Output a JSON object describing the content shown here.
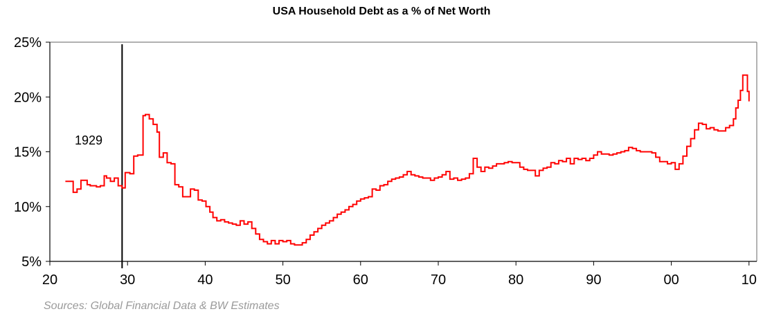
{
  "chart_data": {
    "type": "line",
    "title": "USA Household Debt as a % of Net Worth",
    "source": "Sources: Global Financial Data & BW Estimates",
    "xlabel": "",
    "ylabel": "",
    "xlim": [
      1920,
      2011
    ],
    "ylim": [
      5,
      25
    ],
    "x_ticks": [
      {
        "value": 1920,
        "label": "20"
      },
      {
        "value": 1930,
        "label": "30"
      },
      {
        "value": 1940,
        "label": "40"
      },
      {
        "value": 1950,
        "label": "50"
      },
      {
        "value": 1960,
        "label": "60"
      },
      {
        "value": 1970,
        "label": "70"
      },
      {
        "value": 1980,
        "label": "80"
      },
      {
        "value": 1990,
        "label": "90"
      },
      {
        "value": 2000,
        "label": "00"
      },
      {
        "value": 2010,
        "label": "10"
      }
    ],
    "y_ticks": [
      {
        "value": 5,
        "label": "5%"
      },
      {
        "value": 10,
        "label": "10%"
      },
      {
        "value": 15,
        "label": "15%"
      },
      {
        "value": 20,
        "label": "20%"
      },
      {
        "value": 25,
        "label": "25%"
      }
    ],
    "annotation": {
      "x": 1929.3,
      "label": "1929"
    },
    "grid": false,
    "legend": "none",
    "line_color": "#ff0000",
    "series": [
      {
        "x": [
          1922.0,
          1922.8,
          1923.0,
          1923.5,
          1924.0,
          1924.8,
          1925.2,
          1926.0,
          1926.5,
          1927.0,
          1927.3,
          1927.8,
          1928.3,
          1928.8,
          1929.3,
          1929.7,
          1930.3,
          1930.8,
          1931.3,
          1932.0,
          1932.3,
          1932.8,
          1933.3,
          1933.8,
          1934.1,
          1934.6,
          1935.1,
          1935.6,
          1936.1,
          1936.6,
          1937.1,
          1937.6,
          1938.1,
          1938.6,
          1939.1,
          1939.6,
          1940.1,
          1940.6,
          1941.0,
          1941.5,
          1942.0,
          1942.5,
          1943.0,
          1943.5,
          1944.0,
          1944.5,
          1945.0,
          1945.5,
          1946.0,
          1946.5,
          1947.0,
          1947.5,
          1948.0,
          1948.5,
          1949.0,
          1949.5,
          1950.0,
          1950.5,
          1951.0,
          1951.5,
          1952.0,
          1952.5,
          1953.0,
          1953.5,
          1954.0,
          1954.5,
          1955.0,
          1955.5,
          1956.0,
          1956.5,
          1957.0,
          1957.5,
          1958.0,
          1958.5,
          1959.0,
          1959.5,
          1960.0,
          1960.5,
          1961.0,
          1961.5,
          1962.0,
          1962.5,
          1963.0,
          1963.5,
          1964.0,
          1964.5,
          1965.0,
          1965.5,
          1966.0,
          1966.5,
          1967.0,
          1967.5,
          1968.0,
          1968.5,
          1969.0,
          1969.5,
          1970.0,
          1970.5,
          1971.0,
          1971.5,
          1972.0,
          1972.5,
          1973.0,
          1973.5,
          1974.0,
          1974.5,
          1975.0,
          1975.5,
          1976.0,
          1976.5,
          1977.0,
          1977.5,
          1978.0,
          1978.5,
          1979.0,
          1979.5,
          1980.0,
          1980.5,
          1981.0,
          1981.5,
          1982.0,
          1982.5,
          1983.0,
          1983.5,
          1984.0,
          1984.5,
          1985.0,
          1985.5,
          1986.0,
          1986.5,
          1987.0,
          1987.5,
          1988.0,
          1988.5,
          1989.0,
          1989.5,
          1990.0,
          1990.5,
          1991.0,
          1991.5,
          1992.0,
          1992.5,
          1993.0,
          1993.5,
          1994.0,
          1994.5,
          1995.0,
          1995.5,
          1996.0,
          1996.5,
          1997.0,
          1997.5,
          1998.0,
          1998.5,
          1999.0,
          1999.5,
          2000.0,
          2000.5,
          2001.0,
          2001.5,
          2002.0,
          2002.5,
          2003.0,
          2003.5,
          2004.0,
          2004.5,
          2005.0,
          2005.5,
          2006.0,
          2006.5,
          2007.0,
          2007.5,
          2008.0,
          2008.3,
          2008.6,
          2008.9,
          2009.2,
          2009.5,
          2009.8,
          2010.0
        ],
        "values": [
          12.3,
          12.3,
          11.3,
          11.6,
          12.4,
          12.0,
          11.9,
          11.8,
          11.9,
          12.8,
          12.6,
          12.3,
          12.6,
          11.9,
          11.7,
          13.1,
          13.0,
          14.6,
          14.7,
          18.3,
          18.4,
          18.0,
          17.5,
          16.8,
          14.5,
          14.9,
          14.0,
          13.9,
          12.0,
          11.8,
          10.9,
          10.9,
          11.6,
          11.5,
          10.6,
          10.5,
          10.0,
          9.5,
          9.0,
          8.7,
          8.8,
          8.6,
          8.5,
          8.4,
          8.3,
          8.7,
          8.4,
          8.6,
          8.0,
          7.5,
          7.0,
          6.8,
          6.6,
          6.9,
          6.6,
          6.9,
          6.8,
          6.9,
          6.6,
          6.5,
          6.5,
          6.7,
          7.0,
          7.4,
          7.7,
          8.0,
          8.3,
          8.5,
          8.7,
          9.0,
          9.3,
          9.5,
          9.7,
          10.0,
          10.2,
          10.5,
          10.7,
          10.8,
          10.9,
          11.6,
          11.5,
          11.9,
          12.0,
          12.3,
          12.5,
          12.6,
          12.7,
          12.9,
          13.2,
          12.9,
          12.8,
          12.7,
          12.6,
          12.6,
          12.4,
          12.6,
          12.7,
          12.9,
          13.2,
          12.5,
          12.6,
          12.4,
          12.5,
          12.6,
          13.0,
          14.4,
          13.6,
          13.2,
          13.6,
          13.5,
          13.7,
          13.9,
          13.9,
          14.0,
          14.1,
          14.0,
          14.0,
          13.6,
          13.4,
          13.3,
          13.3,
          12.8,
          13.3,
          13.5,
          13.6,
          14.0,
          13.9,
          14.2,
          14.1,
          14.4,
          13.9,
          14.4,
          14.3,
          14.4,
          14.2,
          14.4,
          14.7,
          15.0,
          14.8,
          14.8,
          14.7,
          14.8,
          14.9,
          15.0,
          15.1,
          15.4,
          15.3,
          15.1,
          15.0,
          15.0,
          15.0,
          14.9,
          14.5,
          14.1,
          14.1,
          13.9,
          14.0,
          13.4,
          13.9,
          14.6,
          15.5,
          16.2,
          17.0,
          17.6,
          17.5,
          17.1,
          17.2,
          17.0,
          16.9,
          16.9,
          17.2,
          17.4,
          18.0,
          19.0,
          19.7,
          20.6,
          22.0,
          22.0,
          20.5,
          19.6
        ]
      }
    ]
  }
}
